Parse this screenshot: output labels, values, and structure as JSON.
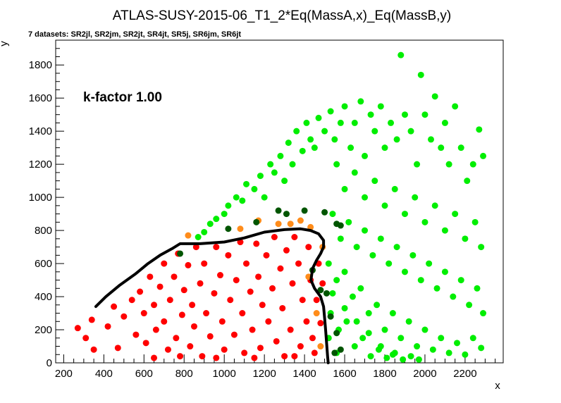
{
  "chart_data": {
    "type": "scatter",
    "title": "ATLAS-SUSY-2015-06_T1_2*Eq(MassA,x)_Eq(MassB,y)",
    "subtitle": "7 datasets: SR2jl, SR2jm, SR2jt, SR4jt, SR5j, SR6jm, SR6jt",
    "annotation": "k-factor 1.00",
    "xlabel": "x",
    "ylabel": "y",
    "xlim": [
      160,
      2390
    ],
    "ylim": [
      0,
      1950
    ],
    "xticks": [
      "200",
      "400",
      "600",
      "800",
      "1000",
      "1200",
      "1400",
      "1600",
      "1800",
      "2000",
      "2200"
    ],
    "yticks": [
      "0",
      "200",
      "400",
      "600",
      "800",
      "1000",
      "1200",
      "1400",
      "1600",
      "1800"
    ],
    "grid": false,
    "colors": {
      "excluded": "#ff0000",
      "allowed": "#00ee00",
      "excluded_border": "#ff8c1a",
      "allowed_border": "#005500",
      "exclusion_line": "#000000"
    },
    "series": [
      {
        "color": "#ff0000",
        "points": [
          [
            270,
            210
          ],
          [
            310,
            150
          ],
          [
            340,
            260
          ],
          [
            350,
            80
          ],
          [
            420,
            220
          ],
          [
            450,
            340
          ],
          [
            470,
            90
          ],
          [
            500,
            280
          ],
          [
            540,
            380
          ],
          [
            560,
            170
          ],
          [
            580,
            430
          ],
          [
            600,
            300
          ],
          [
            610,
            120
          ],
          [
            630,
            520
          ],
          [
            650,
            350
          ],
          [
            660,
            200
          ],
          [
            680,
            460
          ],
          [
            700,
            600
          ],
          [
            700,
            250
          ],
          [
            720,
            80
          ],
          [
            730,
            380
          ],
          [
            750,
            520
          ],
          [
            760,
            150
          ],
          [
            770,
            660
          ],
          [
            790,
            290
          ],
          [
            800,
            440
          ],
          [
            820,
            590
          ],
          [
            830,
            100
          ],
          [
            840,
            350
          ],
          [
            850,
            220
          ],
          [
            860,
            700
          ],
          [
            880,
            480
          ],
          [
            890,
            40
          ],
          [
            900,
            600
          ],
          [
            910,
            300
          ],
          [
            930,
            160
          ],
          [
            950,
            420
          ],
          [
            960,
            700
          ],
          [
            980,
            530
          ],
          [
            990,
            250
          ],
          [
            1000,
            80
          ],
          [
            1020,
            650
          ],
          [
            1030,
            380
          ],
          [
            1050,
            170
          ],
          [
            1060,
            500
          ],
          [
            1080,
            730
          ],
          [
            1090,
            300
          ],
          [
            1100,
            60
          ],
          [
            1110,
            600
          ],
          [
            1130,
            430
          ],
          [
            1140,
            200
          ],
          [
            1160,
            720
          ],
          [
            1170,
            520
          ],
          [
            1180,
            90
          ],
          [
            1190,
            350
          ],
          [
            1210,
            650
          ],
          [
            1220,
            250
          ],
          [
            1240,
            450
          ],
          [
            1250,
            760
          ],
          [
            1260,
            130
          ],
          [
            1280,
            570
          ],
          [
            1290,
            330
          ],
          [
            1300,
            40
          ],
          [
            1310,
            680
          ],
          [
            1330,
            200
          ],
          [
            1340,
            480
          ],
          [
            1350,
            760
          ],
          [
            1370,
            600
          ],
          [
            1380,
            100
          ],
          [
            1390,
            380
          ],
          [
            1410,
            250
          ],
          [
            1420,
            700
          ],
          [
            1430,
            500
          ],
          [
            1440,
            150
          ],
          [
            1450,
            60
          ],
          [
            1460,
            380
          ],
          [
            1470,
            600
          ],
          [
            1480,
            240
          ],
          [
            1490,
            480
          ],
          [
            650,
            30
          ],
          [
            780,
            40
          ],
          [
            960,
            30
          ],
          [
            1150,
            30
          ],
          [
            1350,
            40
          ]
        ]
      },
      {
        "color": "#ff8c1a",
        "points": [
          [
            820,
            770
          ],
          [
            1080,
            810
          ],
          [
            1170,
            860
          ],
          [
            1270,
            840
          ],
          [
            1330,
            840
          ],
          [
            1380,
            860
          ],
          [
            1430,
            820
          ],
          [
            1490,
            700
          ],
          [
            1420,
            520
          ],
          [
            1460,
            300
          ],
          [
            1480,
            100
          ]
        ]
      },
      {
        "color": "#00ee00",
        "points": [
          [
            870,
            760
          ],
          [
            900,
            790
          ],
          [
            930,
            840
          ],
          [
            960,
            870
          ],
          [
            1000,
            900
          ],
          [
            1020,
            950
          ],
          [
            1060,
            1000
          ],
          [
            1090,
            980
          ],
          [
            1110,
            1080
          ],
          [
            1150,
            1050
          ],
          [
            1180,
            1130
          ],
          [
            1200,
            1000
          ],
          [
            1230,
            1200
          ],
          [
            1250,
            1150
          ],
          [
            1280,
            1250
          ],
          [
            1300,
            1100
          ],
          [
            1320,
            1330
          ],
          [
            1340,
            1200
          ],
          [
            1360,
            1400
          ],
          [
            1390,
            1280
          ],
          [
            1410,
            1450
          ],
          [
            1430,
            1350
          ],
          [
            1450,
            1300
          ],
          [
            1470,
            1480
          ],
          [
            1500,
            1400
          ],
          [
            1530,
            1520
          ],
          [
            1550,
            1350
          ],
          [
            1580,
            1450
          ],
          [
            1600,
            1550
          ],
          [
            1630,
            1300
          ],
          [
            1650,
            1450
          ],
          [
            1680,
            1580
          ],
          [
            1700,
            1250
          ],
          [
            1730,
            1500
          ],
          [
            1750,
            1400
          ],
          [
            1780,
            1550
          ],
          [
            1800,
            1300
          ],
          [
            1830,
            1450
          ],
          [
            1860,
            1350
          ],
          [
            1880,
            1860
          ],
          [
            1900,
            1500
          ],
          [
            1930,
            1400
          ],
          [
            1960,
            1200
          ],
          [
            1980,
            1740
          ],
          [
            2000,
            1500
          ],
          [
            2030,
            1350
          ],
          [
            2050,
            1610
          ],
          [
            2080,
            1300
          ],
          [
            2100,
            1450
          ],
          [
            2120,
            1200
          ],
          [
            2150,
            1550
          ],
          [
            2180,
            1300
          ],
          [
            2210,
            1100
          ],
          [
            2240,
            1200
          ],
          [
            2270,
            1410
          ],
          [
            2290,
            1250
          ],
          [
            1560,
            1200
          ],
          [
            1600,
            1050
          ],
          [
            1650,
            1150
          ],
          [
            1700,
            1000
          ],
          [
            1750,
            1100
          ],
          [
            1800,
            950
          ],
          [
            1850,
            1050
          ],
          [
            1900,
            900
          ],
          [
            1950,
            1000
          ],
          [
            2000,
            850
          ],
          [
            2050,
            950
          ],
          [
            2100,
            800
          ],
          [
            2150,
            900
          ],
          [
            2200,
            750
          ],
          [
            2250,
            850
          ],
          [
            2280,
            700
          ],
          [
            1540,
            900
          ],
          [
            1580,
            750
          ],
          [
            1620,
            850
          ],
          [
            1660,
            700
          ],
          [
            1700,
            800
          ],
          [
            1740,
            650
          ],
          [
            1780,
            750
          ],
          [
            1820,
            600
          ],
          [
            1860,
            700
          ],
          [
            1900,
            550
          ],
          [
            1940,
            650
          ],
          [
            1980,
            500
          ],
          [
            2020,
            600
          ],
          [
            2060,
            450
          ],
          [
            2100,
            550
          ],
          [
            2140,
            400
          ],
          [
            2180,
            500
          ],
          [
            2220,
            350
          ],
          [
            2260,
            450
          ],
          [
            2290,
            300
          ],
          [
            1520,
            600
          ],
          [
            1560,
            500
          ],
          [
            1600,
            550
          ],
          [
            1640,
            400
          ],
          [
            1680,
            450
          ],
          [
            1720,
            300
          ],
          [
            1760,
            350
          ],
          [
            1800,
            200
          ],
          [
            1840,
            300
          ],
          [
            1880,
            150
          ],
          [
            1920,
            250
          ],
          [
            1960,
            100
          ],
          [
            2000,
            200
          ],
          [
            2040,
            80
          ],
          [
            2080,
            150
          ],
          [
            2120,
            60
          ],
          [
            2160,
            120
          ],
          [
            2200,
            50
          ],
          [
            2240,
            150
          ],
          [
            2280,
            90
          ],
          [
            1530,
            300
          ],
          [
            1570,
            200
          ],
          [
            1610,
            250
          ],
          [
            1650,
            100
          ],
          [
            1690,
            150
          ],
          [
            1730,
            40
          ],
          [
            1770,
            80
          ],
          [
            1810,
            30
          ],
          [
            1850,
            60
          ],
          [
            1890,
            20
          ],
          [
            1930,
            40
          ],
          [
            1970,
            20
          ],
          [
            1520,
            150
          ],
          [
            1560,
            60
          ],
          [
            1540,
            420
          ],
          [
            1600,
            330
          ],
          [
            1660,
            250
          ],
          [
            1720,
            180
          ],
          [
            1780,
            100
          ],
          [
            1840,
            50
          ]
        ]
      },
      {
        "color": "#005500",
        "points": [
          [
            780,
            660
          ],
          [
            1020,
            810
          ],
          [
            1160,
            850
          ],
          [
            1270,
            920
          ],
          [
            1310,
            900
          ],
          [
            1400,
            920
          ],
          [
            1500,
            910
          ],
          [
            1560,
            840
          ],
          [
            1580,
            830
          ],
          [
            1440,
            560
          ],
          [
            1480,
            440
          ],
          [
            1510,
            420
          ],
          [
            1530,
            280
          ],
          [
            1560,
            180
          ],
          [
            1580,
            80
          ],
          [
            1550,
            60
          ]
        ]
      }
    ],
    "exclusion_line": [
      [
        360,
        340
      ],
      [
        410,
        400
      ],
      [
        480,
        470
      ],
      [
        560,
        540
      ],
      [
        620,
        600
      ],
      [
        680,
        650
      ],
      [
        740,
        690
      ],
      [
        780,
        720
      ],
      [
        820,
        720
      ],
      [
        880,
        720
      ],
      [
        1000,
        730
      ],
      [
        1100,
        755
      ],
      [
        1200,
        790
      ],
      [
        1300,
        805
      ],
      [
        1380,
        810
      ],
      [
        1430,
        800
      ],
      [
        1470,
        780
      ],
      [
        1495,
        740
      ],
      [
        1495,
        700
      ],
      [
        1480,
        660
      ],
      [
        1460,
        620
      ],
      [
        1440,
        570
      ],
      [
        1432,
        500
      ],
      [
        1450,
        450
      ],
      [
        1480,
        400
      ],
      [
        1495,
        340
      ],
      [
        1500,
        270
      ],
      [
        1505,
        200
      ],
      [
        1510,
        120
      ],
      [
        1515,
        40
      ],
      [
        1518,
        0
      ]
    ]
  }
}
